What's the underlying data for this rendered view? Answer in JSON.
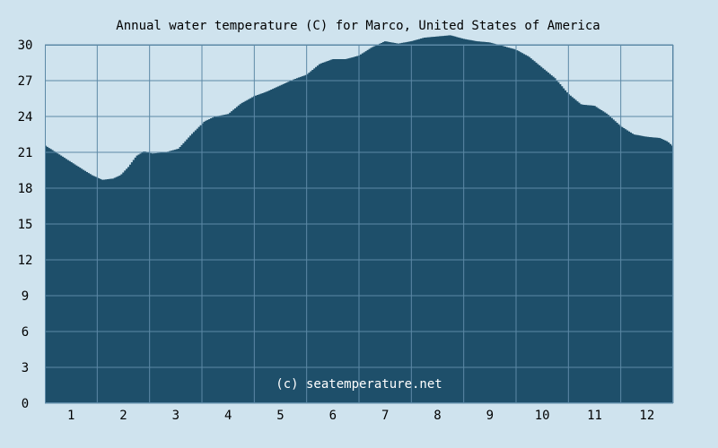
{
  "colors": {
    "background": "#cfe3ee",
    "plot_fill": "#1e4f6a",
    "grid": "#5c89a6",
    "text": "#000000",
    "watermark": "#ffffff"
  },
  "watermark": "(c) seatemperature.net",
  "chart_data": {
    "type": "area",
    "title": "Annual water temperature (C) for Marco, United States of America",
    "xlabel": "",
    "ylabel": "",
    "x_ticks": [
      "1",
      "2",
      "3",
      "4",
      "5",
      "6",
      "7",
      "8",
      "9",
      "10",
      "11",
      "12"
    ],
    "y_ticks": [
      "0",
      "3",
      "6",
      "9",
      "12",
      "15",
      "18",
      "21",
      "24",
      "27",
      "30"
    ],
    "ylim": [
      0,
      30
    ],
    "xlim": [
      0,
      12
    ],
    "grid": true,
    "series": [
      {
        "x": [
          0.0,
          0.25,
          0.5,
          0.75,
          0.9,
          1.1,
          1.3,
          1.45,
          1.6,
          1.75,
          1.9,
          2.05,
          2.3,
          2.55,
          2.8,
          3.05,
          3.25,
          3.5,
          3.75,
          4.0,
          4.25,
          4.5,
          4.75,
          5.0,
          5.25,
          5.5,
          5.75,
          6.0,
          6.25,
          6.5,
          6.75,
          7.0,
          7.25,
          7.5,
          7.75,
          8.0,
          8.25,
          8.5,
          8.75,
          9.0,
          9.25,
          9.5,
          9.75,
          10.0,
          10.25,
          10.5,
          10.75,
          11.0,
          11.25,
          11.5,
          11.75,
          11.9,
          12.0
        ],
        "values": [
          21.6,
          20.9,
          20.2,
          19.5,
          19.1,
          18.7,
          18.8,
          19.1,
          19.8,
          20.7,
          21.1,
          20.9,
          21.0,
          21.3,
          22.5,
          23.6,
          24.0,
          24.2,
          25.1,
          25.7,
          26.1,
          26.6,
          27.1,
          27.5,
          28.4,
          28.8,
          28.8,
          29.1,
          29.8,
          30.3,
          30.1,
          30.3,
          30.6,
          30.7,
          30.8,
          30.5,
          30.3,
          30.2,
          29.9,
          29.6,
          29.0,
          28.1,
          27.2,
          25.9,
          25.0,
          24.9,
          24.2,
          23.2,
          22.5,
          22.3,
          22.2,
          21.9,
          21.5
        ]
      }
    ]
  }
}
